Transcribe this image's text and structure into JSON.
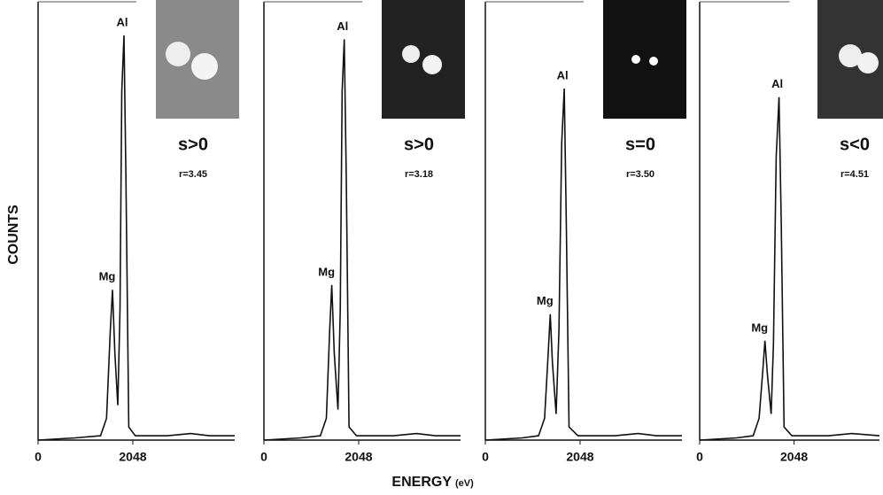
{
  "y_label": "COUNTS",
  "x_label": "ENERGY",
  "x_unit": "(eV)",
  "chart_data": [
    {
      "type": "line",
      "color": "#111111",
      "xlim": [
        0,
        4250
      ],
      "ylim": [
        0,
        100
      ],
      "xticks": [
        0,
        2048
      ],
      "x": [
        0,
        800,
        1350,
        1480,
        1560,
        1608,
        1660,
        1723,
        1770,
        1810,
        1857,
        1900,
        1960,
        2100,
        2800,
        3300,
        3700,
        4250
      ],
      "values": [
        0,
        0.5,
        1,
        5,
        25,
        34.5,
        20,
        8,
        30,
        80,
        92.9,
        60,
        3,
        1,
        1,
        1.5,
        1,
        1
      ],
      "peak_labels": [
        "Mg",
        "Al"
      ],
      "condition": "s>0",
      "ratio_label": "r=3.45"
    },
    {
      "type": "line",
      "color": "#111111",
      "xlim": [
        0,
        4250
      ],
      "ylim": [
        0,
        100
      ],
      "xticks": [
        0,
        2048
      ],
      "x": [
        0,
        800,
        1220,
        1350,
        1420,
        1467,
        1520,
        1600,
        1650,
        1690,
        1737,
        1780,
        1840,
        2000,
        2800,
        3300,
        3700,
        4250
      ],
      "values": [
        0,
        0.5,
        1,
        5,
        25,
        35.6,
        20,
        7,
        30,
        80,
        92,
        60,
        3,
        1,
        1,
        1.5,
        1,
        1
      ],
      "peak_labels": [
        "Mg",
        "Al"
      ],
      "condition": "s>0",
      "ratio_label": "r=3.18"
    },
    {
      "type": "line",
      "color": "#111111",
      "xlim": [
        0,
        4250
      ],
      "ylim": [
        0,
        100
      ],
      "xticks": [
        0,
        2048
      ],
      "x": [
        0,
        800,
        1150,
        1280,
        1360,
        1403,
        1450,
        1530,
        1590,
        1650,
        1706,
        1750,
        1810,
        2000,
        2800,
        3300,
        3700,
        4250
      ],
      "values": [
        0,
        0.5,
        1,
        5,
        20,
        28.9,
        18,
        6,
        25,
        68,
        80.7,
        50,
        3,
        1,
        1,
        1.5,
        1,
        1
      ],
      "peak_labels": [
        "Mg",
        "Al"
      ],
      "condition": "s=0",
      "ratio_label": "r=3.50"
    },
    {
      "type": "line",
      "color": "#111111",
      "xlim": [
        0,
        3900
      ],
      "ylim": [
        0,
        100
      ],
      "xticks": [
        0,
        2048
      ],
      "x": [
        0,
        800,
        1160,
        1290,
        1370,
        1416,
        1470,
        1550,
        1600,
        1660,
        1722,
        1770,
        1830,
        2000,
        2800,
        3300,
        3900
      ],
      "values": [
        0,
        0.5,
        1,
        5,
        16,
        22.8,
        15,
        6,
        22,
        65,
        78.7,
        50,
        3,
        1,
        1,
        1.5,
        1
      ],
      "peak_labels": [
        "Mg",
        "Al"
      ],
      "condition": "s<0",
      "ratio_label": "r=4.51"
    }
  ]
}
